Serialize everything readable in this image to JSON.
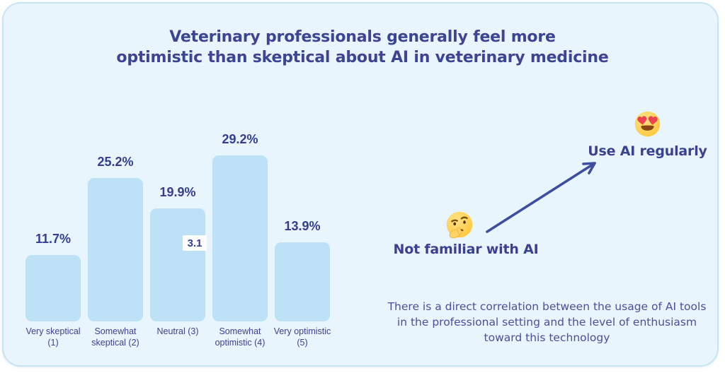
{
  "title": {
    "lines": [
      "Veterinary professionals generally feel more",
      "optimistic than skeptical about AI in veterinary medicine"
    ]
  },
  "chart_data": {
    "type": "bar",
    "title": "Veterinary professionals generally feel more optimistic than skeptical about AI in veterinary medicine",
    "categories": [
      "Very skeptical (1)",
      "Somewhat skeptical (2)",
      "Neutral (3)",
      "Somewhat optimistic (4)",
      "Very optimistic (5)"
    ],
    "values": [
      11.7,
      25.2,
      19.9,
      29.2,
      13.9
    ],
    "value_labels": [
      "11.7%",
      "25.2%",
      "19.9%",
      "29.2%",
      "13.9%"
    ],
    "annotation_box": {
      "label": "3.1",
      "bar_index": 2
    },
    "xlabel": "",
    "ylabel": "",
    "ylim": [
      0,
      32
    ],
    "grid": false,
    "legend": false,
    "bar_color": "#BDE2F8"
  },
  "correlation": {
    "start": {
      "icon": "thinking-face-emoji",
      "label": "Not familiar with AI"
    },
    "end": {
      "icon": "heart-eyes-face-emoji",
      "label": "Use AI regularly"
    },
    "caption_lines": [
      "There is a direct correlation between the usage of AI tools",
      "in the professional setting and the level of enthusiasm",
      "toward this technology"
    ]
  },
  "colors": {
    "card_bg": "#E9F5FC",
    "card_border": "#C7E5F2",
    "bar_fill": "#BDE2F8",
    "heading_text": "#3D4493",
    "value_text": "#343E8F",
    "axis_text": "#3A4292",
    "annotation_text": "#3A4193",
    "caption_text": "#4A4F9E",
    "arrow": "#3D4EA0",
    "mean_box_bg": "#FFFFFF"
  }
}
